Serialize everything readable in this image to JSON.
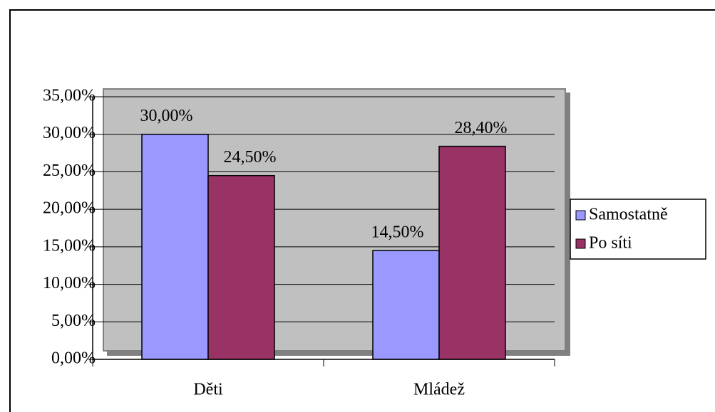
{
  "chart_data": {
    "type": "bar",
    "categories": [
      "Děti",
      "Mládež"
    ],
    "series": [
      {
        "name": "Samostatně",
        "color": "#9999ff",
        "values": [
          30.0,
          14.5
        ],
        "value_labels": [
          "30,00%",
          "14,50%"
        ]
      },
      {
        "name": "Po síti",
        "color": "#993366",
        "values": [
          24.5,
          28.4
        ],
        "value_labels": [
          "24,50%",
          "28,40%"
        ]
      }
    ],
    "ylim": [
      0,
      35
    ],
    "yticks": [
      {
        "value": 0,
        "label": "0,00%"
      },
      {
        "value": 5,
        "label": "5,00%"
      },
      {
        "value": 10,
        "label": "10,00%"
      },
      {
        "value": 15,
        "label": "15,00%"
      },
      {
        "value": 20,
        "label": "20,00%"
      },
      {
        "value": 25,
        "label": "25,00%"
      },
      {
        "value": 30,
        "label": "30,00%"
      },
      {
        "value": 35,
        "label": "35,00%"
      }
    ],
    "grid": true,
    "legend": "right"
  }
}
